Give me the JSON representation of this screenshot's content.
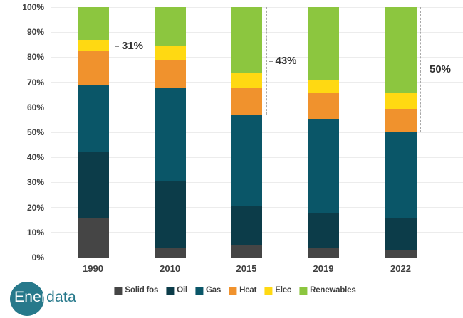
{
  "chart_data": {
    "type": "bar",
    "subtype": "100%-stacked-column",
    "title": "",
    "xlabel": "",
    "ylabel": "",
    "ylim": [
      0,
      100
    ],
    "grid": "horizontal",
    "legend_position": "bottom",
    "categories": [
      "1990",
      "2010",
      "2015",
      "2019",
      "2022"
    ],
    "y_ticks": [
      "100%",
      "90%",
      "80%",
      "70%",
      "60%",
      "50%",
      "40%",
      "30%",
      "20%",
      "10%",
      "0%"
    ],
    "series": [
      {
        "name": "Solid fos",
        "color": "#454545",
        "values": [
          15.5,
          4,
          5,
          4,
          3
        ]
      },
      {
        "name": "Oil",
        "color": "#0c3c49",
        "values": [
          26.5,
          26.5,
          15.5,
          13.5,
          12.5
        ]
      },
      {
        "name": "Gas",
        "color": "#0a5668",
        "values": [
          27,
          37.5,
          36.5,
          38,
          34.5
        ]
      },
      {
        "name": "Heat",
        "color": "#f0922d",
        "values": [
          13.5,
          11,
          10.5,
          10,
          9.5
        ]
      },
      {
        "name": "Elec",
        "color": "#ffd912",
        "values": [
          4.5,
          5.5,
          6,
          5.5,
          6
        ]
      },
      {
        "name": "Renewables",
        "color": "#8cc63f",
        "values": [
          13,
          15.5,
          26.5,
          29,
          34.5
        ]
      }
    ],
    "annotations": [
      {
        "category": "1990",
        "label": "31%",
        "from_pct": 69,
        "to_pct": 100
      },
      {
        "category": "2015",
        "label": "43%",
        "from_pct": 57,
        "to_pct": 100
      },
      {
        "category": "2022",
        "label": "50%",
        "from_pct": 50,
        "to_pct": 100
      }
    ]
  },
  "logo": {
    "prefix": "Ener",
    "suffix": "data",
    "circle_color": "#27798b"
  }
}
